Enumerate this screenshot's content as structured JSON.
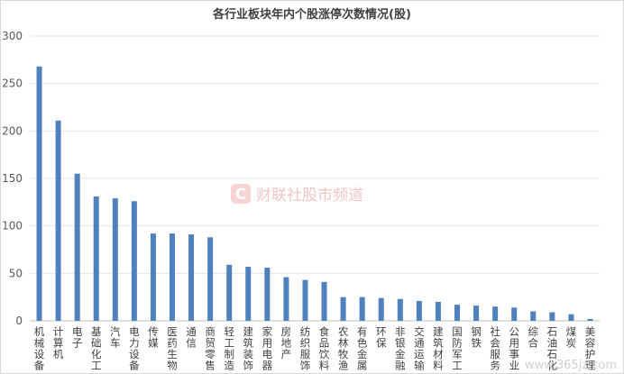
{
  "chart_data": {
    "type": "bar",
    "title": "各行业板块年内个股涨停次数情况(股)",
    "xlabel": "",
    "ylabel": "",
    "ylim": [
      0,
      300
    ],
    "yticks": [
      0,
      50,
      100,
      150,
      200,
      250,
      300
    ],
    "grid": true,
    "legend": "none",
    "categories": [
      "机械设备",
      "计算机",
      "电子",
      "基础化工",
      "汽车",
      "电力设备",
      "传媒",
      "医药生物",
      "通信",
      "商贸零售",
      "轻工制造",
      "建筑装饰",
      "家用电器",
      "房地产",
      "纺织服饰",
      "食品饮料",
      "农林牧渔",
      "有色金属",
      "环保",
      "非银金融",
      "交通运输",
      "建筑材料",
      "国防军工",
      "钢铁",
      "社会服务",
      "公用事业",
      "综合",
      "石油石化",
      "煤炭",
      "美容护理"
    ],
    "values": [
      268,
      211,
      155,
      131,
      129,
      126,
      92,
      92,
      91,
      88,
      59,
      57,
      56,
      46,
      43,
      41,
      25,
      25,
      24,
      23,
      21,
      20,
      17,
      16,
      15,
      14,
      10,
      9,
      7,
      2
    ],
    "bar_color": "#4f81bd"
  },
  "watermark": {
    "logo_letter": "C",
    "text": "财联社股市频道"
  },
  "site_mark": "www.365jz.com"
}
